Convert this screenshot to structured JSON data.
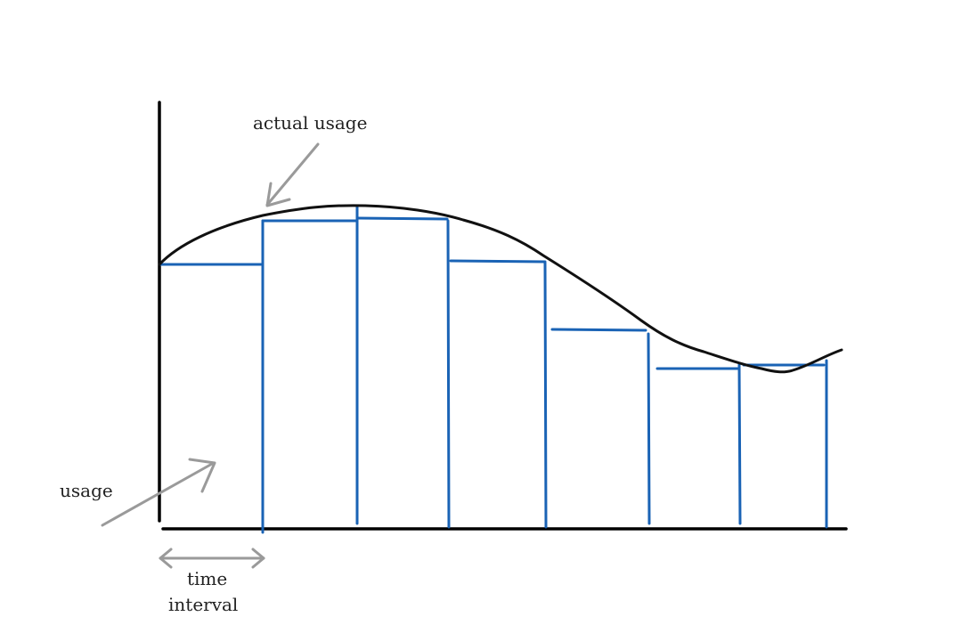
{
  "labels": {
    "actual_usage": "actual usage",
    "usage": "usage",
    "time_line1": "time",
    "time_line2": "interval"
  },
  "colors": {
    "axis": "#000000",
    "curve": "#111111",
    "steps": "#1a63b5",
    "arrows": "#9a9a9a"
  }
}
